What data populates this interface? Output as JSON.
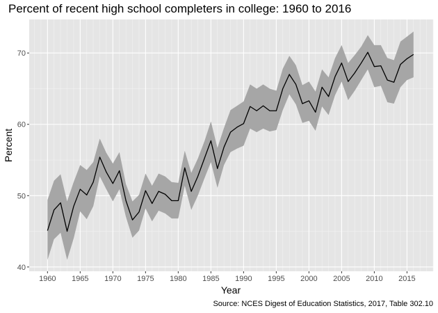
{
  "chart_data": {
    "type": "line",
    "title": "Percent of recent high school completers in college: 1960 to 2016",
    "xlabel": "Year",
    "ylabel": "Percent",
    "caption": "Source: NCES Digest of Education Statistics, 2017, Table 302.10",
    "xlim": [
      1957.2,
      2019.0
    ],
    "ylim": [
      39.4,
      74.7
    ],
    "x_ticks": [
      1960,
      1965,
      1970,
      1975,
      1980,
      1985,
      1990,
      1995,
      2000,
      2005,
      2010,
      2015
    ],
    "y_ticks": [
      40,
      50,
      60,
      70
    ],
    "grid": true,
    "x_minor_grid_every_year": true,
    "legend": "none",
    "colors": {
      "panel_background": "#e5e5e5",
      "grid": "#ffffff",
      "ribbon": "#a6a6a6",
      "line": "#000000"
    },
    "x": [
      1960,
      1961,
      1962,
      1963,
      1964,
      1965,
      1966,
      1967,
      1968,
      1969,
      1970,
      1971,
      1972,
      1973,
      1974,
      1975,
      1976,
      1977,
      1978,
      1979,
      1980,
      1981,
      1982,
      1983,
      1984,
      1985,
      1986,
      1987,
      1988,
      1989,
      1990,
      1991,
      1992,
      1993,
      1994,
      1995,
      1996,
      1997,
      1998,
      1999,
      2000,
      2001,
      2002,
      2003,
      2004,
      2005,
      2006,
      2007,
      2008,
      2009,
      2010,
      2011,
      2012,
      2013,
      2014,
      2015,
      2016
    ],
    "series": [
      {
        "name": "Percent enrolled",
        "kind": "line",
        "values": [
          45.1,
          48.0,
          49.0,
          45.0,
          48.5,
          50.9,
          50.1,
          51.9,
          55.4,
          53.3,
          51.7,
          53.5,
          49.3,
          46.6,
          47.7,
          50.7,
          48.9,
          50.6,
          50.2,
          49.3,
          49.3,
          53.9,
          50.6,
          52.7,
          55.2,
          57.7,
          53.8,
          56.8,
          58.9,
          59.6,
          60.1,
          62.5,
          61.9,
          62.6,
          61.9,
          61.9,
          65.0,
          67.0,
          65.6,
          62.9,
          63.3,
          61.7,
          65.2,
          63.9,
          66.7,
          68.6,
          66.0,
          67.2,
          68.6,
          70.1,
          68.1,
          68.2,
          66.2,
          65.9,
          68.4,
          69.2,
          69.8
        ]
      },
      {
        "name": "Confidence band upper",
        "kind": "ribbon-upper",
        "values": [
          49.4,
          52.1,
          53.0,
          49.2,
          51.9,
          54.3,
          53.6,
          54.7,
          58.0,
          56.0,
          54.5,
          56.1,
          51.6,
          49.2,
          50.1,
          53.1,
          51.4,
          53.1,
          52.7,
          51.9,
          51.8,
          56.3,
          53.2,
          55.2,
          57.6,
          60.4,
          56.7,
          59.5,
          62.0,
          62.6,
          63.2,
          65.6,
          65.0,
          65.6,
          65.0,
          64.7,
          67.8,
          69.6,
          68.3,
          65.5,
          66.0,
          64.6,
          67.7,
          66.6,
          69.3,
          71.1,
          68.6,
          69.7,
          70.9,
          72.5,
          71.1,
          71.1,
          69.3,
          69.0,
          71.6,
          72.3,
          73.0
        ]
      },
      {
        "name": "Confidence band lower",
        "kind": "ribbon-lower",
        "values": [
          41.0,
          43.9,
          44.8,
          41.0,
          44.0,
          47.8,
          46.7,
          48.5,
          52.7,
          50.9,
          49.2,
          50.9,
          47.0,
          44.1,
          45.1,
          48.2,
          46.4,
          47.9,
          47.5,
          46.8,
          46.8,
          51.4,
          48.0,
          50.0,
          52.4,
          54.7,
          51.1,
          54.3,
          56.1,
          56.6,
          57.0,
          59.4,
          58.9,
          59.4,
          59.0,
          59.2,
          62.0,
          64.2,
          62.8,
          60.2,
          60.5,
          59.1,
          62.5,
          61.3,
          64.1,
          66.0,
          63.4,
          64.7,
          66.2,
          67.7,
          65.2,
          65.4,
          63.1,
          62.9,
          65.2,
          66.2,
          66.6
        ]
      }
    ]
  }
}
